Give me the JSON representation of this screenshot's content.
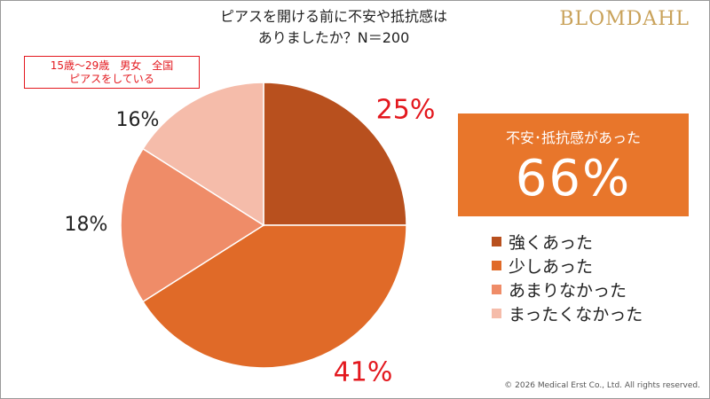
{
  "brand": "BLOMDAHL",
  "note": {
    "line1": "15歳～29歳　男女　全国",
    "line2": "ピアスをしている"
  },
  "summary": {
    "label": "不安･抵抗感があった",
    "value": "66%",
    "color": "#e8762b"
  },
  "copyright": "© 2026 Medical Erst Co., Ltd. All rights reserved.",
  "chart_data": {
    "type": "pie",
    "title_lines": [
      "ピアスを開ける前に不安や抵抗感は",
      "ありましたか？N＝200"
    ],
    "start_angle_deg": 0,
    "direction": "clockwise",
    "slices": [
      {
        "label": "強くあった",
        "value": 25,
        "value_label": "25%",
        "color": "#b8501e",
        "label_color": "#e3181e"
      },
      {
        "label": "少しあった",
        "value": 41,
        "value_label": "41%",
        "color": "#e06a28",
        "label_color": "#e3181e"
      },
      {
        "label": "あまりなかった",
        "value": 18,
        "value_label": "18%",
        "color": "#ef8c68",
        "label_color": "#222222"
      },
      {
        "label": "まったくなかった",
        "value": 16,
        "value_label": "16%",
        "color": "#f5bcaa",
        "label_color": "#222222"
      }
    ],
    "legend_position": "right"
  }
}
